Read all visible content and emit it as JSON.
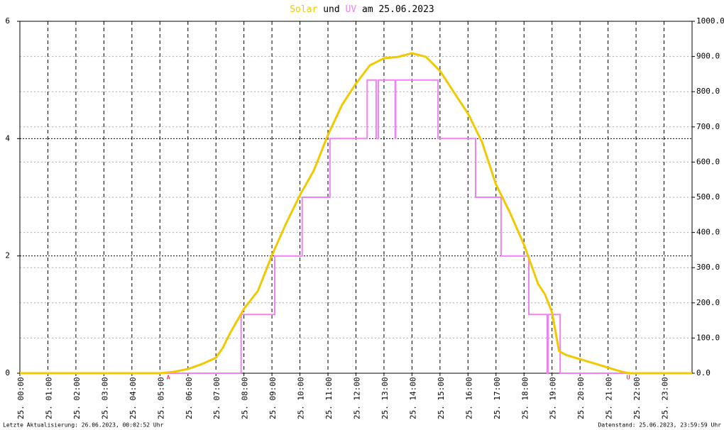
{
  "chart_data": {
    "type": "line",
    "title_connector": "und",
    "title_suffix": "am 25.06.2023",
    "xlim": [
      0,
      24
    ],
    "xticks": [
      {
        "value": 0,
        "label": "25. 00:00"
      },
      {
        "value": 1,
        "label": "25. 01:00"
      },
      {
        "value": 2,
        "label": "25. 02:00"
      },
      {
        "value": 3,
        "label": "25. 03:00"
      },
      {
        "value": 4,
        "label": "25. 04:00"
      },
      {
        "value": 5,
        "label": "25. 05:00"
      },
      {
        "value": 6,
        "label": "25. 06:00"
      },
      {
        "value": 7,
        "label": "25. 07:00"
      },
      {
        "value": 8,
        "label": "25. 08:00"
      },
      {
        "value": 9,
        "label": "25. 09:00"
      },
      {
        "value": 10,
        "label": "25. 10:00"
      },
      {
        "value": 11,
        "label": "25. 11:00"
      },
      {
        "value": 12,
        "label": "25. 12:00"
      },
      {
        "value": 13,
        "label": "25. 13:00"
      },
      {
        "value": 14,
        "label": "25. 14:00"
      },
      {
        "value": 15,
        "label": "25. 15:00"
      },
      {
        "value": 16,
        "label": "25. 16:00"
      },
      {
        "value": 17,
        "label": "25. 17:00"
      },
      {
        "value": 18,
        "label": "25. 18:00"
      },
      {
        "value": 19,
        "label": "25. 19:00"
      },
      {
        "value": 20,
        "label": "25. 20:00"
      },
      {
        "value": 21,
        "label": "25. 21:00"
      },
      {
        "value": 22,
        "label": "25. 22:00"
      },
      {
        "value": 23,
        "label": "25. 23:00"
      }
    ],
    "ylim": [
      0,
      6
    ],
    "yticks": [
      0,
      2,
      4,
      6
    ],
    "y2lim": [
      0,
      1000
    ],
    "y2ticks": [
      {
        "value": 0,
        "label": "0.0"
      },
      {
        "value": 100,
        "label": "100.0"
      },
      {
        "value": 200,
        "label": "200.0"
      },
      {
        "value": 300,
        "label": "300.0"
      },
      {
        "value": 400,
        "label": "400.0"
      },
      {
        "value": 500,
        "label": "500.0"
      },
      {
        "value": 600,
        "label": "600.0"
      },
      {
        "value": 700,
        "label": "700.0"
      },
      {
        "value": 800,
        "label": "800.0"
      },
      {
        "value": 900,
        "label": "900.0"
      },
      {
        "value": 1000,
        "label": "1000.0"
      }
    ],
    "grid": true,
    "series": [
      {
        "name": "Solar",
        "color": "#f2c800",
        "axis": "y2",
        "x": [
          0,
          5,
          5.5,
          6,
          6.5,
          7,
          7.25,
          7.5,
          8,
          8.5,
          9,
          9.5,
          10,
          10.5,
          11,
          11.5,
          12,
          12.5,
          13,
          13.5,
          14,
          14.5,
          15,
          15.5,
          16,
          16.5,
          17,
          17.5,
          18,
          18.5,
          18.75,
          19,
          19.25,
          19.5,
          20,
          20.5,
          21,
          21.5,
          21.75,
          24
        ],
        "values": [
          0,
          0,
          4,
          12,
          26,
          44,
          73,
          113,
          183,
          234,
          335,
          425,
          506,
          577,
          677,
          762,
          823,
          875,
          895,
          899,
          909,
          899,
          859,
          798,
          738,
          657,
          536,
          456,
          365,
          254,
          224,
          173,
          63,
          52,
          40,
          28,
          16,
          4,
          0,
          0
        ]
      },
      {
        "name": "UV",
        "color": "#ee82ee",
        "axis": "y",
        "x": [
          0,
          7.9,
          7.9,
          9.1,
          9.1,
          10.08,
          10.08,
          11.07,
          11.07,
          12.4,
          12.4,
          12.72,
          12.72,
          12.8,
          12.8,
          13.4,
          13.4,
          13.42,
          13.42,
          14.93,
          14.93,
          16.27,
          16.27,
          17.18,
          17.18,
          18.17,
          18.17,
          18.83,
          18.83,
          18.86,
          18.86,
          19.29,
          19.29,
          24
        ],
        "values": [
          0,
          0,
          1,
          1,
          2,
          2,
          3,
          3,
          4,
          4,
          5,
          5,
          4,
          4,
          5,
          5,
          4,
          4,
          5,
          5,
          4,
          4,
          3,
          3,
          2,
          2,
          1,
          1,
          0,
          0,
          1,
          1,
          0,
          0
        ]
      }
    ],
    "annotations": [
      {
        "text": "A",
        "x": 5.3
      },
      {
        "text": "U",
        "x": 21.72
      }
    ],
    "footer_left": "Letzte Aktualisierung: 26.06.2023, 00:02:52 Uhr",
    "footer_right": "Datenstand: 25.06.2023, 23:59:59 Uhr"
  }
}
